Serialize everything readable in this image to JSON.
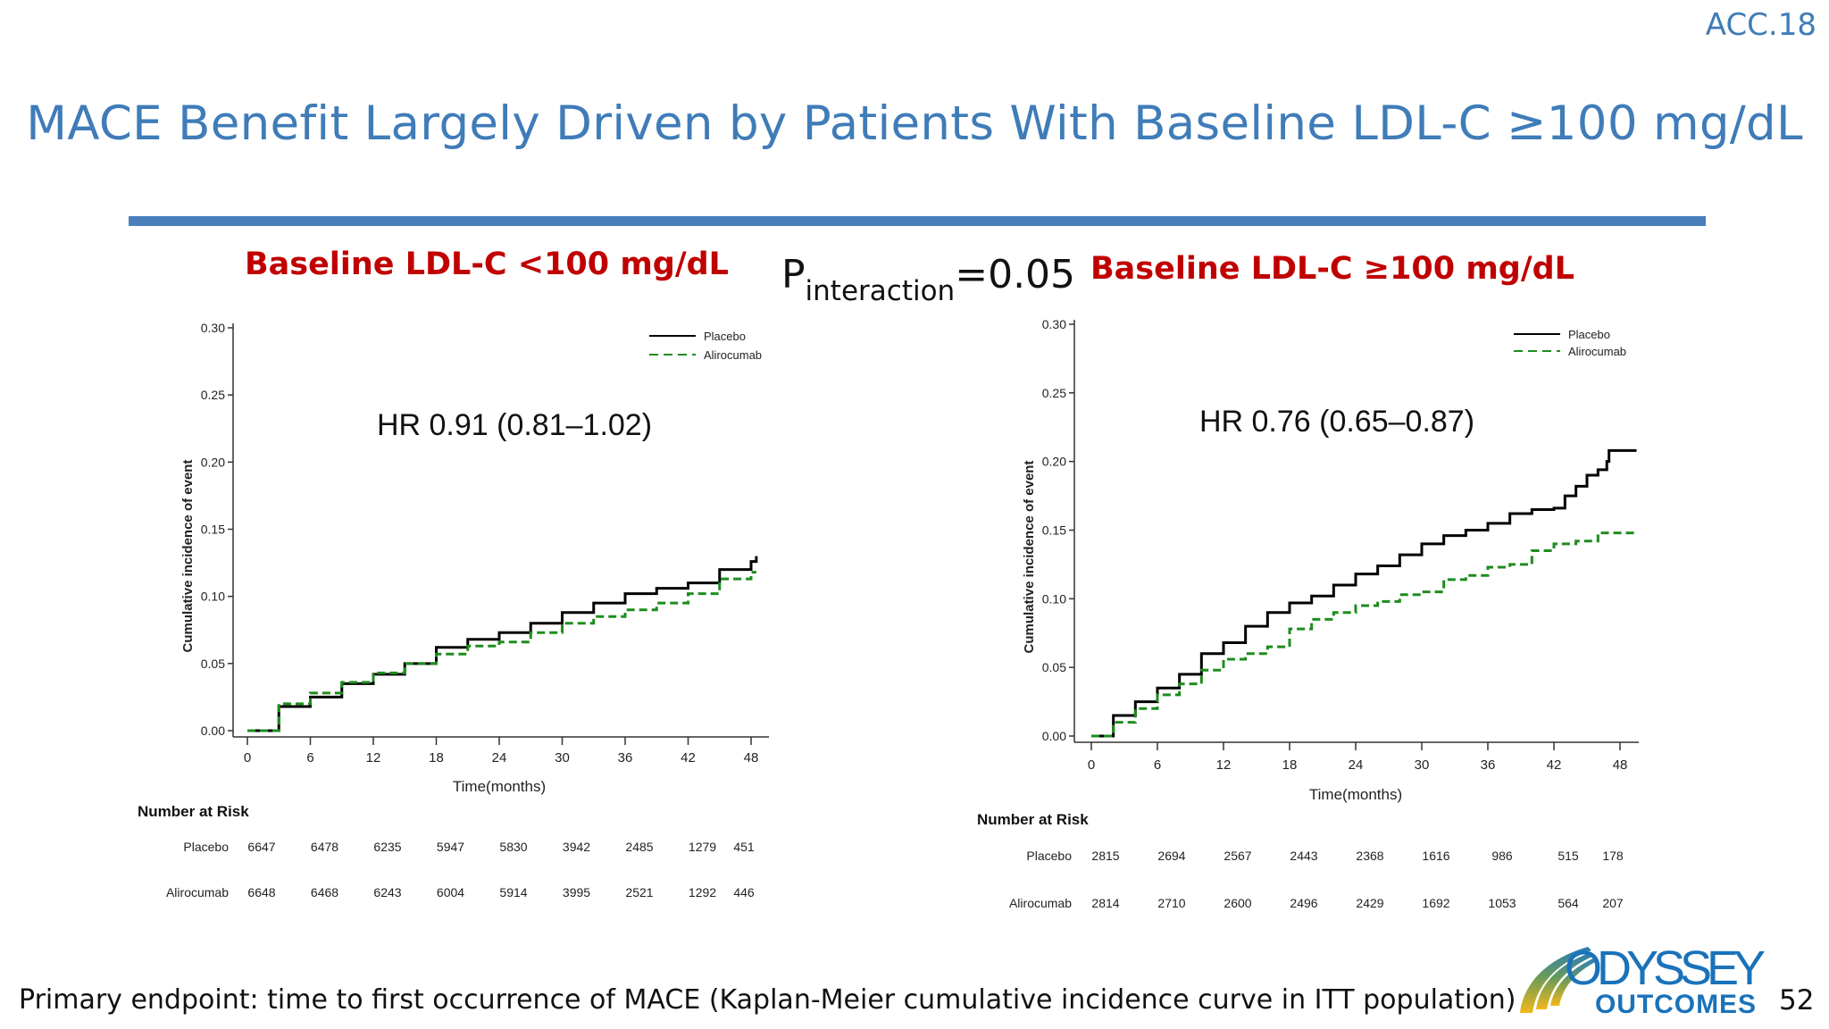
{
  "header": {
    "conference": "ACC.18",
    "title": "MACE Benefit Largely Driven by Patients With Baseline LDL-C ≥100 mg/dL"
  },
  "p_interaction": {
    "label": "P",
    "subscript": "interaction",
    "value": "=0.05"
  },
  "footer": {
    "text": "Primary endpoint: time to first occurrence of MACE (Kaplan-Meier cumulative incidence curve in ITT population)",
    "page_number": "52"
  },
  "logo": {
    "line1": "ODYSSEY",
    "line2": "OUTCOMES"
  },
  "colors": {
    "title": "#3f7cb8",
    "subtitle": "#c00000",
    "placebo": "#000000",
    "alirocumab": "#1e8c1e",
    "logo": "#1a72b9"
  },
  "chart_data": [
    {
      "type": "line",
      "step": true,
      "title": "Baseline LDL-C <100 mg/dL",
      "annotation": "HR 0.91 (0.81–1.02)",
      "xlabel": "Time(months)",
      "ylabel": "Cumulative incidence of event",
      "xlim": [
        0,
        48
      ],
      "ylim": [
        0,
        0.3
      ],
      "xticks": [
        "0",
        "6",
        "12",
        "18",
        "24",
        "30",
        "36",
        "42",
        "48"
      ],
      "yticks": [
        "0.00",
        "0.05",
        "0.10",
        "0.15",
        "0.20",
        "0.25",
        "0.30"
      ],
      "legend": "top-right",
      "series": [
        {
          "name": "Placebo",
          "style": "solid",
          "color": "#000000",
          "x": [
            0,
            3,
            6,
            9,
            12,
            15,
            18,
            21,
            24,
            27,
            30,
            33,
            36,
            39,
            42,
            45,
            47,
            48,
            48.5
          ],
          "y": [
            0,
            0.018,
            0.025,
            0.035,
            0.042,
            0.05,
            0.062,
            0.068,
            0.073,
            0.08,
            0.088,
            0.095,
            0.102,
            0.106,
            0.11,
            0.12,
            0.12,
            0.126,
            0.13
          ]
        },
        {
          "name": "Alirocumab",
          "style": "dashed",
          "color": "#1e8c1e",
          "x": [
            0,
            3,
            6,
            9,
            12,
            15,
            18,
            21,
            24,
            27,
            30,
            33,
            36,
            39,
            42,
            45,
            48,
            48.5
          ],
          "y": [
            0,
            0.02,
            0.028,
            0.036,
            0.043,
            0.05,
            0.057,
            0.063,
            0.066,
            0.073,
            0.08,
            0.085,
            0.09,
            0.095,
            0.102,
            0.113,
            0.118,
            0.118
          ]
        }
      ],
      "number_at_risk": {
        "title": "Number at Risk",
        "rows": [
          {
            "label": "Placebo",
            "values": [
              "6647",
              "6478",
              "6235",
              "5947",
              "5830",
              "3942",
              "2485",
              "1279",
              "451"
            ]
          },
          {
            "label": "Alirocumab",
            "values": [
              "6648",
              "6468",
              "6243",
              "6004",
              "5914",
              "3995",
              "2521",
              "1292",
              "446"
            ]
          }
        ]
      }
    },
    {
      "type": "line",
      "step": true,
      "title": "Baseline LDL-C ≥100 mg/dL",
      "annotation": "HR 0.76 (0.65–0.87)",
      "xlabel": "Time(months)",
      "ylabel": "Cumulative incidence of event",
      "xlim": [
        0,
        48
      ],
      "ylim": [
        0,
        0.3
      ],
      "xticks": [
        "0",
        "6",
        "12",
        "18",
        "24",
        "30",
        "36",
        "42",
        "48"
      ],
      "yticks": [
        "0.00",
        "0.05",
        "0.10",
        "0.15",
        "0.20",
        "0.25",
        "0.30"
      ],
      "legend": "top-right",
      "series": [
        {
          "name": "Placebo",
          "style": "solid",
          "color": "#000000",
          "x": [
            0,
            2,
            4,
            6,
            8,
            10,
            12,
            14,
            16,
            18,
            20,
            22,
            24,
            26,
            28,
            30,
            32,
            34,
            36,
            38,
            40,
            42,
            43,
            44,
            45,
            46,
            46.8,
            47,
            49.5
          ],
          "y": [
            0,
            0.015,
            0.025,
            0.035,
            0.045,
            0.06,
            0.068,
            0.08,
            0.09,
            0.097,
            0.102,
            0.11,
            0.118,
            0.124,
            0.132,
            0.14,
            0.146,
            0.15,
            0.155,
            0.162,
            0.165,
            0.166,
            0.175,
            0.182,
            0.19,
            0.194,
            0.2,
            0.208,
            0.208
          ]
        },
        {
          "name": "Alirocumab",
          "style": "dashed",
          "color": "#1e8c1e",
          "x": [
            0,
            2,
            4,
            6,
            8,
            10,
            12,
            14,
            16,
            18,
            20,
            22,
            24,
            26,
            28,
            30,
            32,
            34,
            36,
            38,
            40,
            42,
            44,
            46,
            49.5
          ],
          "y": [
            0,
            0.01,
            0.02,
            0.03,
            0.038,
            0.048,
            0.056,
            0.06,
            0.065,
            0.078,
            0.085,
            0.09,
            0.095,
            0.098,
            0.103,
            0.105,
            0.114,
            0.117,
            0.123,
            0.125,
            0.135,
            0.14,
            0.142,
            0.148,
            0.148
          ]
        }
      ],
      "number_at_risk": {
        "title": "Number at Risk",
        "rows": [
          {
            "label": "Placebo",
            "values": [
              "2815",
              "2694",
              "2567",
              "2443",
              "2368",
              "1616",
              "986",
              "515",
              "178"
            ]
          },
          {
            "label": "Alirocumab",
            "values": [
              "2814",
              "2710",
              "2600",
              "2496",
              "2429",
              "1692",
              "1053",
              "564",
              "207"
            ]
          }
        ]
      }
    }
  ]
}
